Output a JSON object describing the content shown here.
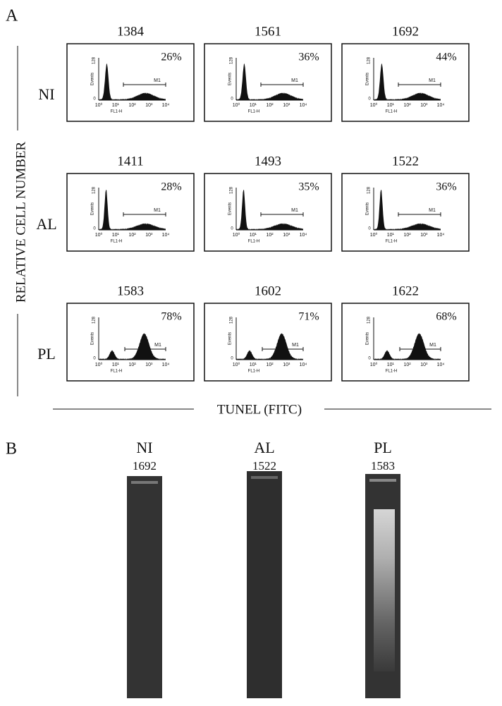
{
  "panel_a": {
    "label": "A",
    "y_axis_title": "RELATIVE CELL NUMBER",
    "x_axis_title": "TUNEL (FITC)",
    "plot_axes": {
      "y_label": "Events",
      "x_label": "FL1-H",
      "y_ticks": [
        "128",
        "0"
      ],
      "x_ticks": [
        "10⁰",
        "10¹",
        "10²",
        "10³",
        "10⁴"
      ],
      "gate": "M1"
    },
    "rows": [
      {
        "label": "NI",
        "plots": [
          {
            "id": "1384",
            "percent": "26%"
          },
          {
            "id": "1561",
            "percent": "36%"
          },
          {
            "id": "1692",
            "percent": "44%"
          }
        ]
      },
      {
        "label": "AL",
        "plots": [
          {
            "id": "1411",
            "percent": "28%"
          },
          {
            "id": "1493",
            "percent": "35%"
          },
          {
            "id": "1522",
            "percent": "36%"
          }
        ]
      },
      {
        "label": "PL",
        "plots": [
          {
            "id": "1583",
            "percent": "78%"
          },
          {
            "id": "1602",
            "percent": "71%"
          },
          {
            "id": "1622",
            "percent": "68%"
          }
        ]
      }
    ]
  },
  "panel_b": {
    "label": "B",
    "lanes": [
      {
        "label": "NI",
        "id": "1692"
      },
      {
        "label": "AL",
        "id": "1522"
      },
      {
        "label": "PL",
        "id": "1583"
      }
    ]
  }
}
